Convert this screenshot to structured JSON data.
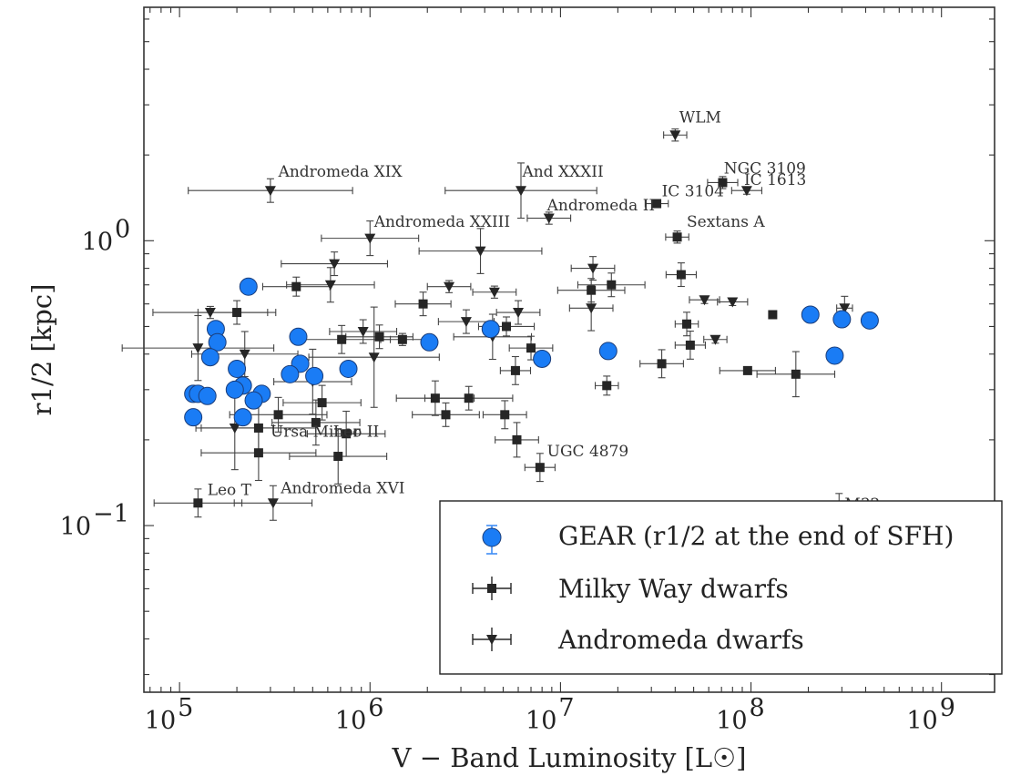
{
  "chart_data": {
    "type": "scatter",
    "title": "",
    "xlabel": "V − Band Luminosity [L☉]",
    "ylabel": "r1/2 [kpc]",
    "xscale": "log",
    "yscale": "log",
    "xlim": [
      65000,
      1900000000
    ],
    "ylim": [
      0.026,
      6.6
    ],
    "grid": false,
    "legend_position": "bottom-right",
    "x_ticks": [
      {
        "base": "10",
        "exp": "5",
        "value": 100000
      },
      {
        "base": "10",
        "exp": "6",
        "value": 1000000
      },
      {
        "base": "10",
        "exp": "7",
        "value": 10000000
      },
      {
        "base": "10",
        "exp": "8",
        "value": 100000000
      },
      {
        "base": "10",
        "exp": "9",
        "value": 1000000000
      }
    ],
    "y_ticks": [
      {
        "base": "10",
        "exp": "0",
        "value": 1
      },
      {
        "base": "10",
        "exp": "−1",
        "value": 0.1
      }
    ],
    "legend": [
      {
        "key": "gear",
        "label": "GEAR (r1/2 at the end of SFH)"
      },
      {
        "key": "mw",
        "label": "Milky Way dwarfs"
      },
      {
        "key": "m31",
        "label": "Andromeda dwarfs"
      }
    ],
    "series": [
      {
        "key": "gear",
        "name": "GEAR (r1/2 at the end of SFH)",
        "marker": "circle",
        "color": "#1a7cf5",
        "points": [
          {
            "x": 230000,
            "y": 0.69
          },
          {
            "x": 155000,
            "y": 0.49
          },
          {
            "x": 158000,
            "y": 0.44
          },
          {
            "x": 145000,
            "y": 0.39
          },
          {
            "x": 420000,
            "y": 0.46
          },
          {
            "x": 430000,
            "y": 0.37
          },
          {
            "x": 200000,
            "y": 0.355
          },
          {
            "x": 380000,
            "y": 0.34
          },
          {
            "x": 510000,
            "y": 0.335
          },
          {
            "x": 770000,
            "y": 0.355
          },
          {
            "x": 215000,
            "y": 0.31
          },
          {
            "x": 195000,
            "y": 0.3
          },
          {
            "x": 270000,
            "y": 0.29
          },
          {
            "x": 245000,
            "y": 0.275
          },
          {
            "x": 118000,
            "y": 0.29
          },
          {
            "x": 125000,
            "y": 0.29
          },
          {
            "x": 140000,
            "y": 0.285
          },
          {
            "x": 118000,
            "y": 0.24
          },
          {
            "x": 215000,
            "y": 0.24
          },
          {
            "x": 2050000,
            "y": 0.44
          },
          {
            "x": 4300000,
            "y": 0.49
          },
          {
            "x": 8000000,
            "y": 0.385
          },
          {
            "x": 17800000,
            "y": 0.41
          },
          {
            "x": 205000000,
            "y": 0.55
          },
          {
            "x": 300000000,
            "y": 0.53
          },
          {
            "x": 420000000,
            "y": 0.525
          },
          {
            "x": 275000000,
            "y": 0.395
          }
        ]
      },
      {
        "key": "mw",
        "name": "Milky Way dwarfs",
        "marker": "square",
        "color": "#262626",
        "points": [
          {
            "x": 71000000,
            "y": 1.6,
            "xerr": [
              1.2,
              1.2
            ],
            "yerr": [
              1.05,
              1.05
            ]
          },
          {
            "x": 32000000,
            "y": 1.35,
            "xerr": [
              1.15,
              1.15
            ],
            "yerr": [
              1.03,
              1.03
            ]
          },
          {
            "x": 41000000,
            "y": 1.03,
            "xerr": [
              1.15,
              1.15
            ],
            "yerr": [
              1.05,
              1.05
            ]
          },
          {
            "x": 43000000,
            "y": 0.76,
            "xerr": [
              1.2,
              1.2
            ],
            "yerr": [
              1.1,
              1.1
            ]
          },
          {
            "x": 130000000,
            "y": 0.55,
            "xerr": [
              1.0,
              1.0
            ],
            "yerr": [
              1.0,
              1.0
            ]
          },
          {
            "x": 410000,
            "y": 0.69,
            "xerr": [
              1.5,
              1.5
            ],
            "yerr": [
              1.08,
              1.08
            ]
          },
          {
            "x": 200000,
            "y": 0.56,
            "xerr": [
              1.6,
              1.6
            ],
            "yerr": [
              1.1,
              1.1
            ]
          },
          {
            "x": 1900000,
            "y": 0.6,
            "xerr": [
              1.4,
              1.4
            ],
            "yerr": [
              1.1,
              1.1
            ]
          },
          {
            "x": 5200000,
            "y": 0.5,
            "xerr": [
              1.4,
              1.4
            ],
            "yerr": [
              1.08,
              1.08
            ]
          },
          {
            "x": 1480000,
            "y": 0.45,
            "xerr": [
              1.3,
              1.3
            ],
            "yerr": [
              1.05,
              1.05
            ]
          },
          {
            "x": 1120000,
            "y": 0.46,
            "xerr": [
              1.5,
              1.5
            ],
            "yerr": [
              1.1,
              1.1
            ]
          },
          {
            "x": 710000,
            "y": 0.45,
            "xerr": [
              1.8,
              1.8
            ],
            "yerr": [
              1.12,
              1.12
            ]
          },
          {
            "x": 14500000,
            "y": 0.67,
            "xerr": [
              1.5,
              1.5
            ],
            "yerr": [
              1.1,
              1.1
            ]
          },
          {
            "x": 18500000,
            "y": 0.7,
            "xerr": [
              1.5,
              1.5
            ],
            "yerr": [
              1.1,
              1.1
            ]
          },
          {
            "x": 46000000,
            "y": 0.51,
            "xerr": [
              1.15,
              1.15
            ],
            "yerr": [
              1.1,
              1.1
            ]
          },
          {
            "x": 7000000,
            "y": 0.42,
            "xerr": [
              1.3,
              1.3
            ],
            "yerr": [
              1.1,
              1.1
            ]
          },
          {
            "x": 48000000,
            "y": 0.43,
            "xerr": [
              1.2,
              1.2
            ],
            "yerr": [
              1.12,
              1.12
            ]
          },
          {
            "x": 34000000,
            "y": 0.37,
            "xerr": [
              1.3,
              1.3
            ],
            "yerr": [
              1.12,
              1.12
            ]
          },
          {
            "x": 96000000,
            "y": 0.35,
            "xerr": [
              1.4,
              1.4
            ],
            "yerr": [
              1.03,
              1.03
            ]
          },
          {
            "x": 172000000,
            "y": 0.34,
            "xerr": [
              1.6,
              1.6
            ],
            "yerr": [
              1.2,
              1.2
            ]
          },
          {
            "x": 5800000,
            "y": 0.35,
            "xerr": [
              1.2,
              1.2
            ],
            "yerr": [
              1.12,
              1.12
            ]
          },
          {
            "x": 17500000,
            "y": 0.31,
            "xerr": [
              1.15,
              1.15
            ],
            "yerr": [
              1.08,
              1.08
            ]
          },
          {
            "x": 3300000,
            "y": 0.28,
            "xerr": [
              1.7,
              1.7
            ],
            "yerr": [
              1.1,
              1.1
            ]
          },
          {
            "x": 2200000,
            "y": 0.28,
            "xerr": [
              1.6,
              1.6
            ],
            "yerr": [
              1.15,
              1.15
            ]
          },
          {
            "x": 2500000,
            "y": 0.245,
            "xerr": [
              1.5,
              1.5
            ],
            "yerr": [
              1.1,
              1.1
            ]
          },
          {
            "x": 5100000,
            "y": 0.245,
            "xerr": [
              1.3,
              1.3
            ],
            "yerr": [
              1.12,
              1.12
            ]
          },
          {
            "x": 5900000,
            "y": 0.2,
            "xerr": [
              1.3,
              1.3
            ],
            "yerr": [
              1.15,
              1.15
            ]
          },
          {
            "x": 7800000,
            "y": 0.16,
            "xerr": [
              1.2,
              1.2
            ],
            "yerr": [
              1.12,
              1.12
            ]
          },
          {
            "x": 330000,
            "y": 0.245,
            "xerr": [
              1.8,
              1.8
            ],
            "yerr": [
              1.15,
              1.15
            ]
          },
          {
            "x": 560000,
            "y": 0.27,
            "xerr": [
              1.6,
              1.6
            ],
            "yerr": [
              1.15,
              1.15
            ]
          },
          {
            "x": 520000,
            "y": 0.23,
            "xerr": [
              1.7,
              1.7
            ],
            "yerr": [
              1.2,
              1.2
            ]
          },
          {
            "x": 260000,
            "y": 0.22,
            "xerr": [
              2.0,
              2.0
            ],
            "yerr": [
              1.25,
              1.25
            ]
          },
          {
            "x": 750000,
            "y": 0.21,
            "xerr": [
              1.6,
              1.6
            ],
            "yerr": [
              1.2,
              1.2
            ]
          },
          {
            "x": 260000,
            "y": 0.18,
            "xerr": [
              2.0,
              2.0
            ],
            "yerr": [
              1.25,
              1.25
            ]
          },
          {
            "x": 680000,
            "y": 0.175,
            "xerr": [
              1.8,
              1.8
            ],
            "yerr": [
              1.25,
              1.25
            ]
          },
          {
            "x": 125000,
            "y": 0.12,
            "xerr": [
              1.7,
              1.7
            ],
            "yerr": [
              1.12,
              1.12
            ]
          }
        ]
      },
      {
        "key": "m31",
        "name": "Andromeda dwarfs",
        "marker": "triangle-down",
        "color": "#262626",
        "points": [
          {
            "x": 40000000,
            "y": 2.35,
            "xerr": [
              1.15,
              1.15
            ],
            "yerr": [
              1.05,
              1.05
            ]
          },
          {
            "x": 95000000,
            "y": 1.5,
            "xerr": [
              1.2,
              1.2
            ],
            "yerr": [
              1.03,
              1.03
            ]
          },
          {
            "x": 6200000,
            "y": 1.5,
            "xerr": [
              2.5,
              2.5
            ],
            "yerr": [
              1.25,
              1.25
            ]
          },
          {
            "x": 300000,
            "y": 1.5,
            "xerr": [
              2.7,
              2.7
            ],
            "yerr": [
              1.1,
              1.1
            ]
          },
          {
            "x": 8700000,
            "y": 1.2,
            "xerr": [
              1.3,
              1.3
            ],
            "yerr": [
              1.05,
              1.05
            ]
          },
          {
            "x": 1000000,
            "y": 1.02,
            "xerr": [
              1.8,
              1.8
            ],
            "yerr": [
              1.15,
              1.15
            ]
          },
          {
            "x": 3800000,
            "y": 0.92,
            "xerr": [
              2.1,
              2.1
            ],
            "yerr": [
              1.2,
              1.2
            ]
          },
          {
            "x": 650000,
            "y": 0.83,
            "xerr": [
              1.9,
              1.9
            ],
            "yerr": [
              1.1,
              1.1
            ]
          },
          {
            "x": 620000,
            "y": 0.7,
            "xerr": [
              1.7,
              1.7
            ],
            "yerr": [
              1.15,
              1.15
            ]
          },
          {
            "x": 2600000,
            "y": 0.69,
            "xerr": [
              1.3,
              1.3
            ],
            "yerr": [
              1.05,
              1.05
            ]
          },
          {
            "x": 4500000,
            "y": 0.66,
            "xerr": [
              1.3,
              1.3
            ],
            "yerr": [
              1.05,
              1.05
            ]
          },
          {
            "x": 14800000,
            "y": 0.8,
            "xerr": [
              1.3,
              1.3
            ],
            "yerr": [
              1.1,
              1.1
            ]
          },
          {
            "x": 14500000,
            "y": 0.58,
            "xerr": [
              1.3,
              1.3
            ],
            "yerr": [
              1.2,
              1.2
            ]
          },
          {
            "x": 6000000,
            "y": 0.56,
            "xerr": [
              1.3,
              1.3
            ],
            "yerr": [
              1.1,
              1.1
            ]
          },
          {
            "x": 57000000,
            "y": 0.62,
            "xerr": [
              1.2,
              1.2
            ],
            "yerr": [
              1.03,
              1.03
            ]
          },
          {
            "x": 80000000,
            "y": 0.61,
            "xerr": [
              1.2,
              1.2
            ],
            "yerr": [
              1.03,
              1.03
            ]
          },
          {
            "x": 310000000,
            "y": 0.58,
            "xerr": [
              1.1,
              1.1
            ],
            "yerr": [
              1.1,
              1.1
            ]
          },
          {
            "x": 65000000,
            "y": 0.45,
            "xerr": [
              1.15,
              1.15
            ],
            "yerr": [
              1.03,
              1.03
            ]
          },
          {
            "x": 3200000,
            "y": 0.52,
            "xerr": [
              1.4,
              1.4
            ],
            "yerr": [
              1.1,
              1.1
            ]
          },
          {
            "x": 4400000,
            "y": 0.46,
            "xerr": [
              1.6,
              1.6
            ],
            "yerr": [
              1.2,
              1.2
            ]
          },
          {
            "x": 145000,
            "y": 0.56,
            "xerr": [
              2.0,
              2.0
            ],
            "yerr": [
              1.05,
              1.05
            ]
          },
          {
            "x": 125000,
            "y": 0.42,
            "xerr": [
              2.5,
              2.5
            ],
            "yerr": [
              1.3,
              1.3
            ]
          },
          {
            "x": 220000,
            "y": 0.4,
            "xerr": [
              1.9,
              1.9
            ],
            "yerr": [
              1.2,
              1.2
            ]
          },
          {
            "x": 920000,
            "y": 0.48,
            "xerr": [
              1.5,
              1.5
            ],
            "yerr": [
              1.1,
              1.1
            ]
          },
          {
            "x": 1050000,
            "y": 0.39,
            "xerr": [
              2.2,
              2.2
            ],
            "yerr": [
              1.5,
              1.5
            ]
          },
          {
            "x": 500000,
            "y": 0.32,
            "xerr": [
              1.6,
              1.6
            ],
            "yerr": [
              1.3,
              1.3
            ]
          },
          {
            "x": 195000,
            "y": 0.22,
            "xerr": [
              1.6,
              1.6
            ],
            "yerr": [
              1.4,
              1.4
            ]
          },
          {
            "x": 310000,
            "y": 0.12,
            "xerr": [
              1.6,
              1.6
            ],
            "yerr": [
              1.15,
              1.15
            ]
          },
          {
            "x": 290000000,
            "y": 0.108,
            "xerr": [
              1.03,
              1.03
            ],
            "yerr": [
              1.2,
              1.2
            ]
          }
        ]
      }
    ],
    "annotations": [
      {
        "text": "WLM",
        "x": 42000000,
        "y": 2.6
      },
      {
        "text": "NGC 3109",
        "x": 72000000,
        "y": 1.72
      },
      {
        "text": "IC 1613",
        "x": 92000000,
        "y": 1.57
      },
      {
        "text": "IC 3104",
        "x": 34000000,
        "y": 1.43
      },
      {
        "text": "Andromeda II",
        "x": 8500000,
        "y": 1.28
      },
      {
        "text": "Sextans A",
        "x": 46000000,
        "y": 1.12
      },
      {
        "text": "And XXXII",
        "x": 6300000,
        "y": 1.68
      },
      {
        "text": "Andromeda XIX",
        "x": 330000,
        "y": 1.68
      },
      {
        "text": "Andromeda XXIII",
        "x": 1050000,
        "y": 1.12
      },
      {
        "text": "Ursa Minor",
        "x": 300000,
        "y": 0.205
      },
      {
        "text": "Leo II",
        "x": 640000,
        "y": 0.205
      },
      {
        "text": "UGC 4879",
        "x": 8500000,
        "y": 0.175
      },
      {
        "text": "Leo T",
        "x": 140000,
        "y": 0.128
      },
      {
        "text": "Andromeda XVI",
        "x": 340000,
        "y": 0.13
      },
      {
        "text": "M32",
        "x": 310000000,
        "y": 0.114
      }
    ]
  }
}
